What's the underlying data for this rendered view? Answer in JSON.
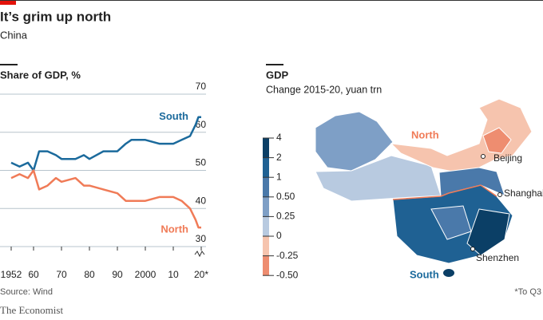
{
  "title": "It’s grim up north",
  "subtitle": "China",
  "chart_data": [
    {
      "type": "line",
      "title": "Share of GDP, %",
      "x": [
        1952,
        1955,
        1958,
        1960,
        1962,
        1965,
        1968,
        1970,
        1975,
        1978,
        1980,
        1985,
        1990,
        1993,
        1995,
        2000,
        2005,
        2010,
        2013,
        2016,
        2018,
        2019,
        2020
      ],
      "series": [
        {
          "name": "South",
          "color": "#1b6a9c",
          "values": [
            52,
            51,
            52,
            50,
            55,
            55,
            54,
            53,
            53,
            54,
            53,
            55,
            55,
            57,
            58,
            58,
            57,
            57,
            58,
            59,
            62,
            64,
            64
          ]
        },
        {
          "name": "North",
          "color": "#f07b57",
          "values": [
            48,
            49,
            48,
            50,
            45,
            46,
            48,
            47,
            48,
            46,
            46,
            45,
            44,
            42,
            42,
            42,
            43,
            43,
            42,
            40,
            37,
            35,
            35
          ]
        }
      ],
      "xlim": [
        1952,
        2020
      ],
      "xticks": [
        1952,
        {
          "value": 1960,
          "label": "60"
        },
        {
          "value": 1970,
          "label": "70"
        },
        {
          "value": 1980,
          "label": "80"
        },
        {
          "value": 1990,
          "label": "90"
        },
        2000,
        {
          "value": 2010,
          "label": "10"
        },
        {
          "value": 2020,
          "label": "20*"
        }
      ],
      "ylim": [
        30,
        70
      ],
      "yticks": [
        30,
        40,
        50,
        60,
        70
      ],
      "grid": true,
      "source": "Source: Wind"
    },
    {
      "type": "map",
      "title": "GDP",
      "subtitle": "Change 2015-20, yuan trn",
      "scale_ticks": [
        4,
        2,
        1,
        {
          "value": 0.5,
          "label": "0.50"
        },
        0.25,
        0,
        -0.25,
        {
          "value": -0.5,
          "label": "-0.50"
        }
      ],
      "scale_colors": [
        "#0b3f66",
        "#1f6193",
        "#4a79aa",
        "#7e9fc6",
        "#b8cae0",
        "#f6c4ae",
        "#ee8d70"
      ],
      "labels": [
        "North",
        "South",
        "Beijing",
        "Shanghai",
        "Shenzhen"
      ],
      "footnote": "*To Q3"
    }
  ],
  "brand": "The Economist"
}
